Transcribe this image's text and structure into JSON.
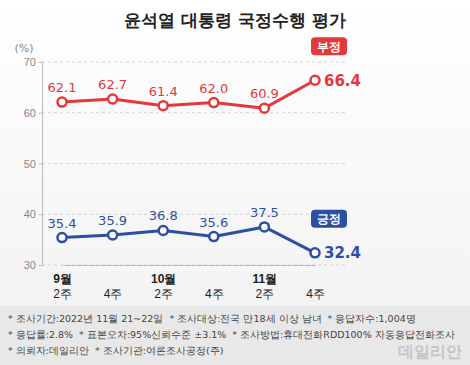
{
  "chart_data": {
    "type": "line",
    "title": "윤석열 대통령 국정수행 평가",
    "y_label": "(%)",
    "categories": [
      "9월 2주",
      "4주",
      "10월 2주",
      "4주",
      "11월 2주",
      "4주"
    ],
    "series": [
      {
        "name": "부정",
        "color": "#e5383b",
        "values": [
          62.1,
          62.7,
          61.4,
          62.0,
          60.9,
          66.4
        ],
        "value_labels": [
          "62.1",
          "62.7",
          "61.4",
          "62.0",
          "60.9",
          "66.4"
        ]
      },
      {
        "name": "긍정",
        "color": "#2d4fa3",
        "values": [
          35.4,
          35.9,
          36.8,
          35.6,
          37.5,
          32.4
        ],
        "value_labels": [
          "35.4",
          "35.9",
          "36.8",
          "35.6",
          "37.5",
          "32.4"
        ]
      }
    ],
    "ylim": [
      30,
      70
    ],
    "yticks": [
      30,
      40,
      50,
      60,
      70
    ],
    "grid": true,
    "data_labels": true,
    "legend": "right",
    "marker": "circle",
    "notes": [
      [
        "* 조사기간:2022년 11월 21~22일",
        "* 조사대상:전국 만18세 이상 남녀",
        "* 응답자수:1,004명"
      ],
      [
        "* 응답률:2.8%",
        "* 표본오차:95%신뢰수준 ±3.1%",
        "* 조사방법:휴대전화RDD100% 자동응답전화조사"
      ],
      [
        "* 의뢰자:데일리안",
        "* 조사기관:여론조사공정(주)"
      ]
    ],
    "watermark": "데일리안"
  }
}
